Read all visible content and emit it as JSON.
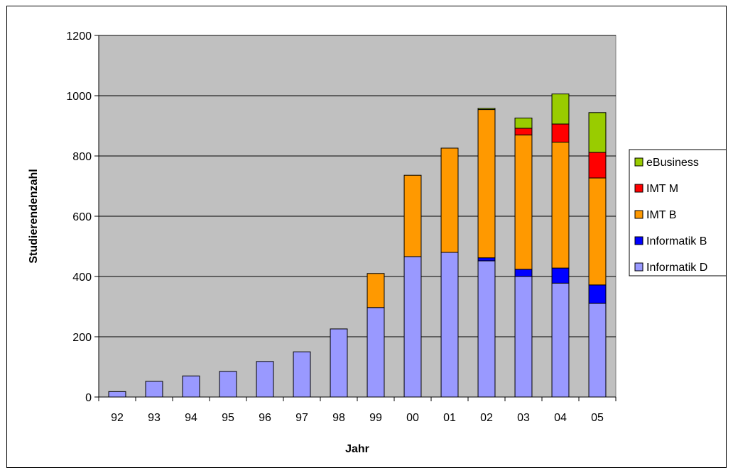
{
  "chart_data": {
    "type": "bar",
    "stacked": true,
    "title": "",
    "xlabel": "Jahr",
    "ylabel": "Studierendenzahl",
    "ylim": [
      0,
      1200
    ],
    "yticks": [
      0,
      200,
      400,
      600,
      800,
      1000,
      1200
    ],
    "grid": true,
    "legend_position": "right",
    "plot_background": "#c0c0c0",
    "categories": [
      "92",
      "93",
      "94",
      "95",
      "96",
      "97",
      "98",
      "99",
      "00",
      "01",
      "02",
      "03",
      "04",
      "05"
    ],
    "series": [
      {
        "name": "Informatik D",
        "color": "#9999ff",
        "values": [
          18,
          52,
          70,
          85,
          118,
          150,
          226,
          297,
          466,
          480,
          452,
          400,
          378,
          311
        ]
      },
      {
        "name": "Informatik B",
        "color": "#0000ff",
        "values": [
          0,
          0,
          0,
          0,
          0,
          0,
          0,
          0,
          0,
          0,
          10,
          24,
          50,
          61
        ]
      },
      {
        "name": "IMT B",
        "color": "#ff9900",
        "values": [
          0,
          0,
          0,
          0,
          0,
          0,
          0,
          113,
          270,
          346,
          492,
          446,
          418,
          355
        ]
      },
      {
        "name": "IMT M",
        "color": "#ff0000",
        "values": [
          0,
          0,
          0,
          0,
          0,
          0,
          0,
          0,
          0,
          0,
          0,
          22,
          60,
          85
        ]
      },
      {
        "name": "eBusiness",
        "color": "#99cc00",
        "values": [
          0,
          0,
          0,
          0,
          0,
          0,
          0,
          0,
          0,
          0,
          4,
          34,
          100,
          132
        ]
      }
    ]
  }
}
